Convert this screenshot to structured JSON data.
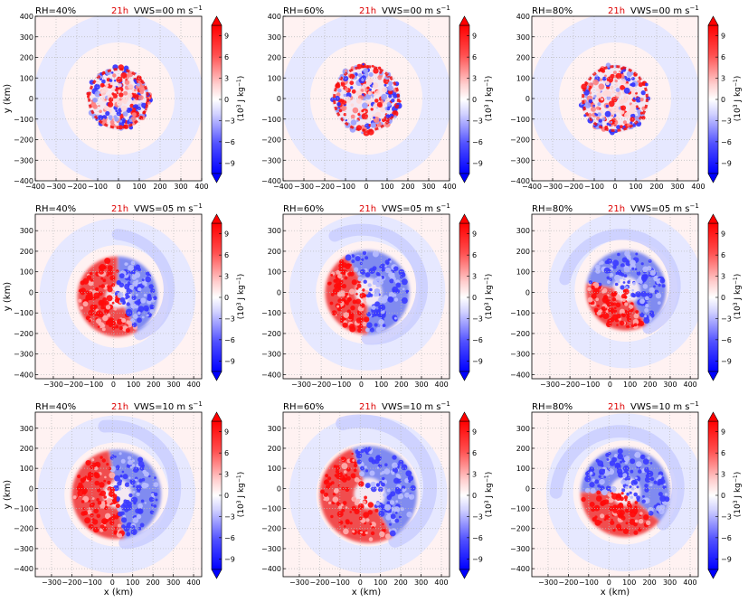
{
  "colors": {
    "red": "#e80000",
    "blue": "#0000f0",
    "time_label": "#dd0000",
    "grid": "#b8b8b8"
  },
  "chart_data": {
    "type": "heatmap",
    "field_description": "",
    "time_label": "21h",
    "colorbar": {
      "label_prefix": "(10",
      "label_exp": "3",
      "label_suffix": " J kg",
      "label_exp2": "−1",
      "label_close": ")",
      "ticks": [
        "9",
        "6",
        "3",
        "0",
        "−3",
        "−6",
        "−9"
      ],
      "tick_values": [
        9,
        6,
        3,
        0,
        -3,
        -6,
        -9
      ],
      "range": [
        -10.5,
        10.5
      ],
      "extend": "both"
    },
    "xlabel": "x (km)",
    "ylabel": "y (km)",
    "rows": [
      {
        "vws_label": "VWS=00 m s",
        "vws_exp": "−1",
        "xlim": [
          -400,
          400
        ],
        "ylim": [
          -400,
          400
        ],
        "xticks": [
          -400,
          -300,
          -200,
          -100,
          0,
          100,
          200,
          300,
          400
        ],
        "xtick_labels": [
          "−400",
          "−300",
          "−200",
          "−100",
          "0",
          "100",
          "200",
          "300",
          "400"
        ],
        "yticks": [
          400,
          300,
          200,
          100,
          0,
          -100,
          -200,
          -300,
          -400
        ],
        "ytick_labels": [
          "400",
          "300",
          "200",
          "100",
          "0",
          "−100",
          "−200",
          "−300",
          "−400"
        ]
      },
      {
        "vws_label": "VWS=05 m s",
        "vws_exp": "−1",
        "xlim": [
          -390,
          440
        ],
        "ylim": [
          -420,
          380
        ],
        "xticks": [
          -300,
          -200,
          -100,
          0,
          100,
          200,
          300,
          400
        ],
        "xtick_labels": [
          "−300",
          "−200",
          "−100",
          "0",
          "100",
          "200",
          "300",
          "400"
        ],
        "yticks": [
          300,
          200,
          100,
          0,
          -100,
          -200,
          -300,
          -400
        ],
        "ytick_labels": [
          "300",
          "200",
          "100",
          "0",
          "−100",
          "−200",
          "−300",
          "−400"
        ]
      },
      {
        "vws_label": "VWS=10 m s",
        "vws_exp": "−1",
        "xlim": [
          -380,
          440
        ],
        "ylim": [
          -440,
          380
        ],
        "xticks": [
          -300,
          -200,
          -100,
          0,
          100,
          200,
          300,
          400
        ],
        "xtick_labels": [
          "−300",
          "−200",
          "−100",
          "0",
          "100",
          "200",
          "300",
          "400"
        ],
        "yticks": [
          300,
          200,
          100,
          0,
          -100,
          -200,
          -300,
          -400
        ],
        "ytick_labels": [
          "300",
          "200",
          "100",
          "0",
          "−100",
          "−200",
          "−300",
          "−400"
        ]
      }
    ],
    "panels": [
      {
        "rh": "RH=40%",
        "row": 0,
        "col": 0,
        "center": [
          0,
          0
        ],
        "core_radius": 160,
        "halo_radius": 400,
        "red_sector": [
          0,
          360
        ],
        "blue_sector": null,
        "speckle_sign": "mixed"
      },
      {
        "rh": "RH=60%",
        "row": 0,
        "col": 1,
        "center": [
          0,
          0
        ],
        "core_radius": 175,
        "halo_radius": 400,
        "red_sector": [
          0,
          360
        ],
        "blue_sector": null,
        "speckle_sign": "mixed"
      },
      {
        "rh": "RH=80%",
        "row": 0,
        "col": 2,
        "center": [
          0,
          0
        ],
        "core_radius": 175,
        "halo_radius": 400,
        "red_sector": [
          0,
          360
        ],
        "blue_sector": null,
        "speckle_sign": "mixed"
      },
      {
        "rh": "RH=40%",
        "row": 1,
        "col": 0,
        "center": [
          20,
          -20
        ],
        "core_radius": 200,
        "halo_radius": 380,
        "red_sector": [
          90,
          300
        ],
        "blue_sector": [
          300,
          450
        ],
        "speckle_sign": "mixed"
      },
      {
        "rh": "RH=60%",
        "row": 1,
        "col": 1,
        "center": [
          30,
          0
        ],
        "core_radius": 210,
        "halo_radius": 380,
        "red_sector": [
          120,
          270
        ],
        "blue_sector": [
          270,
          480
        ],
        "speckle_sign": "mixed"
      },
      {
        "rh": "RH=80%",
        "row": 1,
        "col": 2,
        "center": [
          80,
          10
        ],
        "core_radius": 200,
        "halo_radius": 380,
        "red_sector": [
          170,
          300
        ],
        "blue_sector": [
          300,
          530
        ],
        "speckle_sign": "mixed"
      },
      {
        "rh": "RH=40%",
        "row": 2,
        "col": 0,
        "center": [
          20,
          -30
        ],
        "core_radius": 220,
        "halo_radius": 380,
        "red_sector": [
          100,
          280
        ],
        "blue_sector": [
          280,
          460
        ],
        "speckle_sign": "mixed"
      },
      {
        "rh": "RH=60%",
        "row": 2,
        "col": 1,
        "center": [
          40,
          -30
        ],
        "core_radius": 240,
        "halo_radius": 380,
        "red_sector": [
          110,
          300
        ],
        "blue_sector": [
          300,
          470
        ],
        "speckle_sign": "mixed"
      },
      {
        "rh": "RH=80%",
        "row": 2,
        "col": 2,
        "center": [
          80,
          -20
        ],
        "core_radius": 220,
        "halo_radius": 380,
        "red_sector": [
          180,
          320
        ],
        "blue_sector": [
          320,
          540
        ],
        "speckle_sign": "mixed"
      }
    ]
  }
}
